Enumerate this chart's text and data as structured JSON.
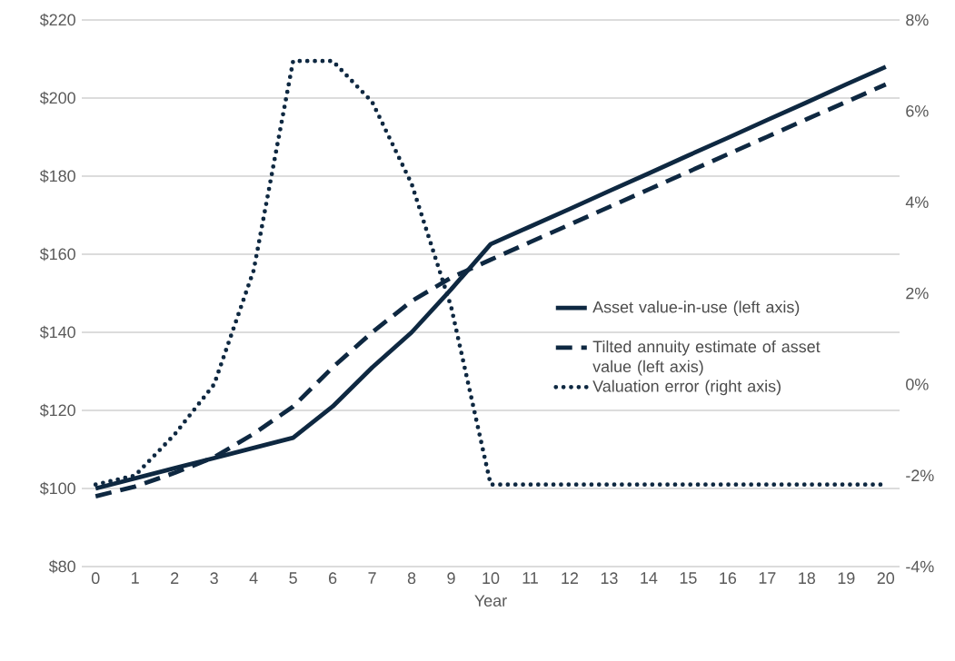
{
  "chart_data": {
    "type": "line",
    "xlabel": "Year",
    "categories": [
      "0",
      "1",
      "2",
      "3",
      "4",
      "5",
      "6",
      "7",
      "8",
      "9",
      "10",
      "11",
      "12",
      "13",
      "14",
      "15",
      "16",
      "17",
      "18",
      "19",
      "20"
    ],
    "series": [
      {
        "name": "Asset value-in-use (left axis)",
        "color": "#0e2841",
        "line_style": "solid",
        "values": [
          100,
          102.6,
          105.2,
          107.8,
          110.4,
          113,
          121,
          131,
          140,
          151,
          162.6,
          167.1,
          171.6,
          176.2,
          180.7,
          185.3,
          189.8,
          194.4,
          198.9,
          203.5,
          208
        ]
      },
      {
        "name": "Tilted annuity estimate of asset value (left axis)",
        "color": "#0e2841",
        "line_style": "dashed",
        "values": [
          98,
          100.5,
          104,
          108,
          114,
          121,
          131,
          140,
          148,
          154,
          158.6,
          163.1,
          167.6,
          172.1,
          176.6,
          181.1,
          185.6,
          190.1,
          194.6,
          199,
          203.5
        ]
      },
      {
        "name": "Valuation error (right axis)",
        "color": "#0e2841",
        "line_style": "dotted",
        "axis": "y2",
        "values": [
          -2.2,
          -2,
          -1.1,
          0,
          2.5,
          7.1,
          7.1,
          6.2,
          4.4,
          1.7,
          -2.2,
          -2.2,
          -2.2,
          -2.2,
          -2.2,
          -2.2,
          -2.2,
          -2.2,
          -2.2,
          -2.2,
          -2.2
        ]
      }
    ],
    "ylim": [
      80,
      220
    ],
    "yticks": [
      {
        "value": 80,
        "label": "$80"
      },
      {
        "value": 100,
        "label": "$100"
      },
      {
        "value": 120,
        "label": "$120"
      },
      {
        "value": 140,
        "label": "$140"
      },
      {
        "value": 160,
        "label": "$160"
      },
      {
        "value": 180,
        "label": "$180"
      },
      {
        "value": 200,
        "label": "$200"
      },
      {
        "value": 220,
        "label": "$220"
      }
    ],
    "y2lim": [
      -4,
      8
    ],
    "y2ticks": [
      {
        "value": -4,
        "label": "-4%"
      },
      {
        "value": -2,
        "label": "-2%"
      },
      {
        "value": 0,
        "label": "0%"
      },
      {
        "value": 2,
        "label": "2%"
      },
      {
        "value": 4,
        "label": "4%"
      },
      {
        "value": 6,
        "label": "6%"
      },
      {
        "value": 8,
        "label": "8%"
      }
    ],
    "grid": "y",
    "legend": "right"
  }
}
